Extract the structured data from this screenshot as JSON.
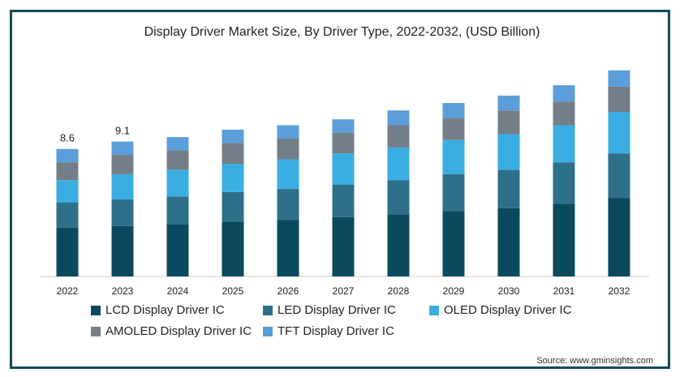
{
  "chart_data": {
    "type": "bar",
    "stacked": true,
    "title": "Display Driver Market Size, By Driver Type, 2022-2032, (USD Billion)",
    "categories": [
      "2022",
      "2023",
      "2024",
      "2025",
      "2026",
      "2027",
      "2028",
      "2029",
      "2030",
      "2031",
      "2032"
    ],
    "series": [
      {
        "name": "LCD Display Driver IC",
        "color": "#0b4a5e",
        "values": [
          3.3,
          3.4,
          3.5,
          3.7,
          3.8,
          4.0,
          4.2,
          4.4,
          4.6,
          4.9,
          5.3
        ]
      },
      {
        "name": "LED Display Driver IC",
        "color": "#2e6f8a",
        "values": [
          1.7,
          1.8,
          1.9,
          2.0,
          2.1,
          2.2,
          2.3,
          2.5,
          2.6,
          2.8,
          3.0
        ]
      },
      {
        "name": "OLED Display Driver IC",
        "color": "#3aaee2",
        "values": [
          1.5,
          1.7,
          1.8,
          1.9,
          2.0,
          2.1,
          2.2,
          2.3,
          2.4,
          2.5,
          2.8
        ]
      },
      {
        "name": "AMOLED Display Driver IC",
        "color": "#737e88",
        "values": [
          1.2,
          1.3,
          1.3,
          1.4,
          1.4,
          1.4,
          1.5,
          1.5,
          1.6,
          1.6,
          1.7
        ]
      },
      {
        "name": "TFT Display Driver IC",
        "color": "#5c9ed9",
        "values": [
          0.9,
          0.9,
          0.9,
          0.9,
          0.9,
          0.9,
          1.0,
          1.0,
          1.0,
          1.1,
          1.1
        ]
      }
    ],
    "totals_labels": [
      {
        "index": 0,
        "text": "8.6"
      },
      {
        "index": 1,
        "text": "9.1"
      }
    ],
    "ymax": 14.0,
    "grid": false,
    "legend_position": "bottom"
  },
  "source": "Source: www.gminsights.com"
}
